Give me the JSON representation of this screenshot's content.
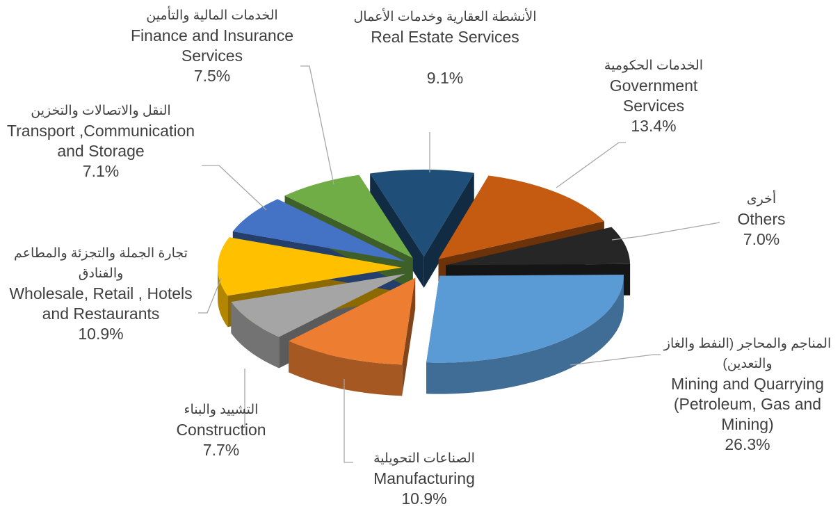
{
  "chart_data": {
    "type": "pie",
    "categories": [
      "Real Estate Services",
      "Government Services",
      "Others",
      "Mining and Quarrying (Petroleum, Gas and Mining)",
      "Manufacturing",
      "Construction",
      "Wholesale, Retail , Hotels and Restaurants",
      "Transport ,Communication and Storage",
      "Finance and Insurance Services"
    ],
    "categories_ar": [
      "الأنشطة العقارية وخدمات الأعمال",
      "الخدمات الحكومية",
      "أخرى",
      "المناجم والمحاجر (النفط والغاز والتعدين)",
      "الصناعات التحويلية",
      "التشييد والبناء",
      "تجارة الجملة والتجزئة والمطاعم والفنادق",
      "النقل والاتصالات والتخزين",
      "الخدمات المالية والتأمين"
    ],
    "values": [
      9.1,
      13.4,
      7.0,
      26.3,
      10.9,
      7.7,
      10.9,
      7.1,
      7.5
    ],
    "value_labels": [
      "9.1%",
      "13.4%",
      "7.0%",
      "26.3%",
      "10.9%",
      "7.7%",
      "10.9%",
      "7.1%",
      "7.5%"
    ],
    "colors": [
      "#1f4e79",
      "#c55a11",
      "#262626",
      "#5b9bd5",
      "#ed7d31",
      "#a5a5a5",
      "#ffc000",
      "#4472c4",
      "#70ad47"
    ]
  }
}
